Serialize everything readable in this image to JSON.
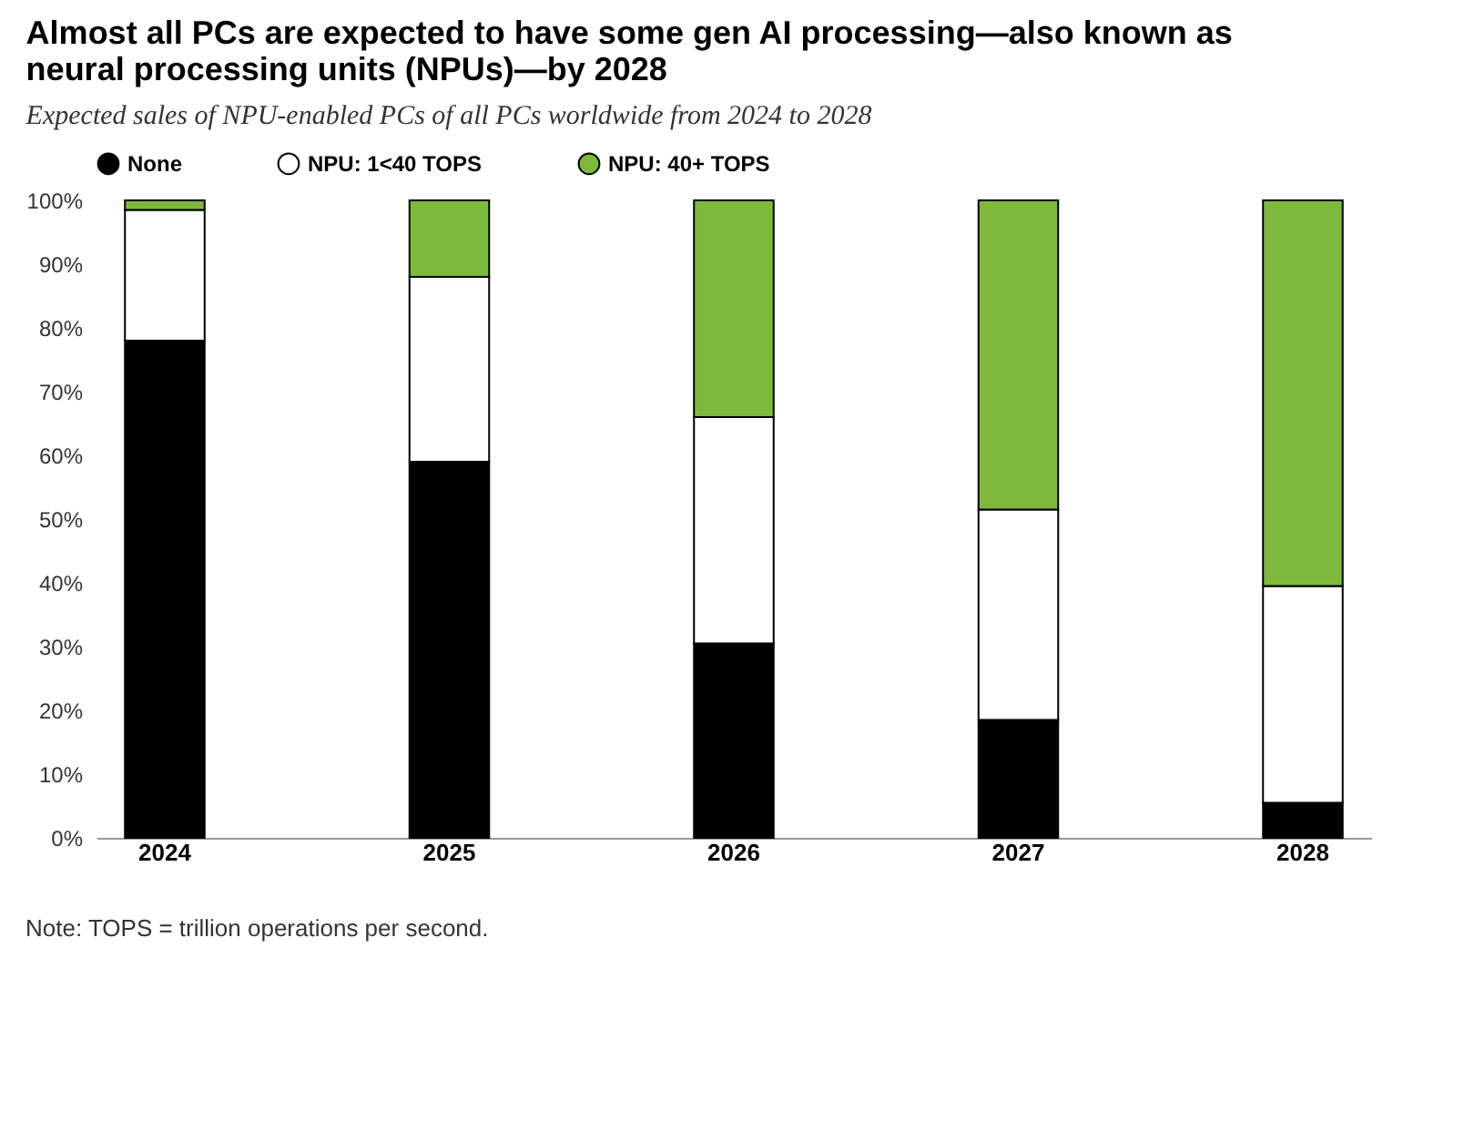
{
  "chart_data": {
    "type": "bar",
    "title": "Almost all PCs are expected to have some gen AI processing—also known as neural processing units (NPUs)—by 2028",
    "subtitle": "Expected sales of NPU-enabled PCs of all PCs worldwide from 2024 to 2028",
    "categories": [
      "2024",
      "2025",
      "2026",
      "2027",
      "2028"
    ],
    "stacked": true,
    "series": [
      {
        "name": "None",
        "color": "#000000",
        "values": [
          78,
          59,
          30.5,
          18.5,
          5.5
        ]
      },
      {
        "name": "NPU: 1<40 TOPS",
        "color": "#ffffff",
        "values": [
          20.5,
          29,
          35.5,
          33,
          34
        ]
      },
      {
        "name": "NPU: 40+ TOPS",
        "color": "#7dba3b",
        "values": [
          1.5,
          12,
          34,
          48.5,
          60.5
        ]
      }
    ],
    "ylim": [
      0,
      100
    ],
    "yticks": [
      {
        "value": 0,
        "label": "0%"
      },
      {
        "value": 10,
        "label": "10%"
      },
      {
        "value": 20,
        "label": "20%"
      },
      {
        "value": 30,
        "label": "30%"
      },
      {
        "value": 40,
        "label": "40%"
      },
      {
        "value": 50,
        "label": "50%"
      },
      {
        "value": 60,
        "label": "60%"
      },
      {
        "value": 70,
        "label": "70%"
      },
      {
        "value": 80,
        "label": "80%"
      },
      {
        "value": 90,
        "label": "90%"
      },
      {
        "value": 100,
        "label": "100%"
      }
    ],
    "legend": "top left",
    "annotations": [
      "Note: TOPS = trillion operations per second."
    ]
  }
}
